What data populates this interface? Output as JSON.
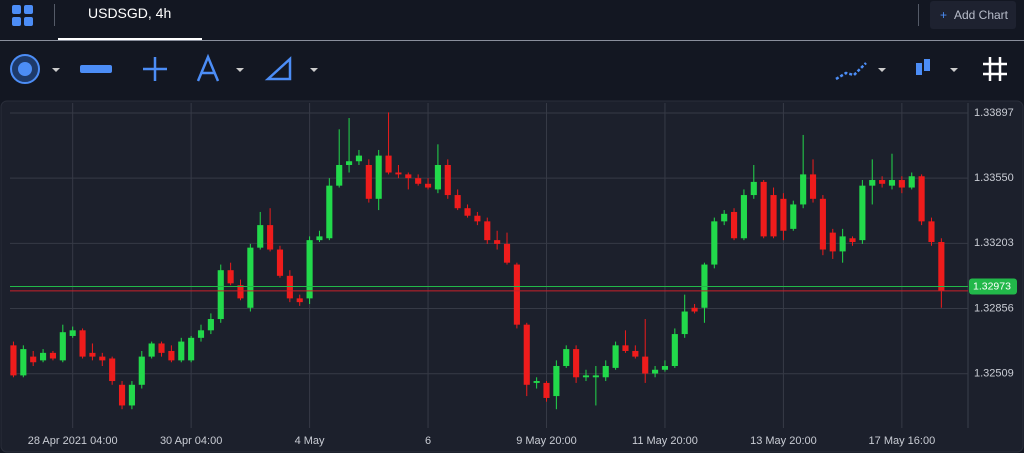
{
  "header": {
    "tab": "USDSGD, 4h",
    "add_chart": "Add Chart"
  },
  "chart_data": {
    "type": "candlestick",
    "up_color": "#22d94b",
    "down_color": "#ee1c1c",
    "grid": true,
    "open": [
      1.3266,
      1.325,
      1.326,
      1.3258,
      1.3262,
      1.3258,
      1.3271,
      1.3274,
      1.3262,
      1.326,
      1.3259,
      1.3245,
      1.3234,
      1.3245,
      1.326,
      1.3267,
      1.3263,
      1.3258,
      1.3258,
      1.327,
      1.3274,
      1.328,
      1.3306,
      1.3298,
      1.3286,
      1.3318,
      1.333,
      1.3317,
      1.3303,
      1.3291,
      1.3291,
      1.3322,
      1.3323,
      1.3351,
      1.3362,
      1.3364,
      1.3362,
      1.3344,
      1.3367,
      1.3358,
      1.3357,
      1.3355,
      1.3352,
      1.3349,
      1.3362,
      1.3346,
      1.3339,
      1.3335,
      1.3332,
      1.3322,
      1.332,
      1.3309,
      1.3277,
      1.3246,
      1.3246,
      1.3239,
      1.3255,
      1.3264,
      1.3249,
      1.3249,
      1.3249,
      1.3254,
      1.3266,
      1.3263,
      1.326,
      1.3251,
      1.3253,
      1.3255,
      1.3272,
      1.3286,
      1.3286,
      1.3309,
      1.3332,
      1.3337,
      1.3323,
      1.3346,
      1.3353,
      1.3346,
      1.3344,
      1.3328,
      1.3341,
      1.3357,
      1.3344,
      1.3326,
      1.3316,
      1.3323,
      1.3322,
      1.3351,
      1.3354,
      1.3351,
      1.3354,
      1.335,
      1.3356,
      1.3332,
      1.3321
    ],
    "high": [
      1.3268,
      1.3266,
      1.3263,
      1.3264,
      1.3263,
      1.3277,
      1.3276,
      1.3275,
      1.3267,
      1.3262,
      1.326,
      1.3247,
      1.3247,
      1.3263,
      1.3268,
      1.3268,
      1.3266,
      1.327,
      1.3271,
      1.3277,
      1.3283,
      1.3309,
      1.331,
      1.3301,
      1.332,
      1.3337,
      1.3339,
      1.3319,
      1.3306,
      1.3293,
      1.3324,
      1.3327,
      1.3355,
      1.3381,
      1.3387,
      1.337,
      1.3365,
      1.337,
      1.339,
      1.3362,
      1.3358,
      1.3357,
      1.3355,
      1.3373,
      1.3365,
      1.3349,
      1.3341,
      1.3337,
      1.3334,
      1.3327,
      1.3326,
      1.331,
      1.3278,
      1.3249,
      1.3247,
      1.3258,
      1.3266,
      1.3266,
      1.3253,
      1.3255,
      1.3258,
      1.3268,
      1.3274,
      1.3266,
      1.328,
      1.3255,
      1.3258,
      1.3275,
      1.3293,
      1.3288,
      1.331,
      1.3334,
      1.3338,
      1.3339,
      1.3349,
      1.3362,
      1.3354,
      1.335,
      1.3347,
      1.3343,
      1.3378,
      1.3365,
      1.3346,
      1.3328,
      1.3328,
      1.3324,
      1.3354,
      1.3365,
      1.3356,
      1.3368,
      1.3356,
      1.3358,
      1.3357,
      1.3334,
      1.3323
    ],
    "low": [
      1.3249,
      1.3249,
      1.3255,
      1.3257,
      1.3258,
      1.3257,
      1.327,
      1.3259,
      1.3258,
      1.3255,
      1.3245,
      1.3232,
      1.3232,
      1.3243,
      1.3259,
      1.326,
      1.3257,
      1.3257,
      1.3257,
      1.3268,
      1.3272,
      1.3278,
      1.3298,
      1.329,
      1.3284,
      1.3317,
      1.3316,
      1.3302,
      1.3289,
      1.3287,
      1.3288,
      1.3321,
      1.3322,
      1.335,
      1.3358,
      1.3362,
      1.3342,
      1.3338,
      1.3357,
      1.3355,
      1.3349,
      1.3351,
      1.3349,
      1.3347,
      1.3344,
      1.3338,
      1.3334,
      1.333,
      1.332,
      1.3317,
      1.3309,
      1.3275,
      1.3239,
      1.3243,
      1.3236,
      1.3232,
      1.3254,
      1.3246,
      1.3247,
      1.3234,
      1.3247,
      1.3253,
      1.3262,
      1.3259,
      1.3246,
      1.3249,
      1.3252,
      1.3254,
      1.327,
      1.3283,
      1.3278,
      1.3307,
      1.333,
      1.3322,
      1.3322,
      1.3344,
      1.3323,
      1.3323,
      1.3322,
      1.3327,
      1.3339,
      1.3342,
      1.3314,
      1.3312,
      1.331,
      1.3319,
      1.332,
      1.3341,
      1.335,
      1.3349,
      1.3347,
      1.3349,
      1.333,
      1.3319,
      1.3286
    ],
    "close": [
      1.325,
      1.3264,
      1.3257,
      1.3262,
      1.3259,
      1.3273,
      1.3274,
      1.326,
      1.326,
      1.3258,
      1.3247,
      1.3234,
      1.3245,
      1.326,
      1.3267,
      1.3262,
      1.3258,
      1.3268,
      1.327,
      1.3274,
      1.328,
      1.3306,
      1.3299,
      1.3291,
      1.3318,
      1.333,
      1.3317,
      1.3303,
      1.3291,
      1.3289,
      1.3322,
      1.3324,
      1.3351,
      1.3362,
      1.3364,
      1.3367,
      1.3344,
      1.3367,
      1.3358,
      1.3357,
      1.3355,
      1.3352,
      1.335,
      1.3362,
      1.3346,
      1.3339,
      1.3335,
      1.3332,
      1.3322,
      1.332,
      1.331,
      1.3277,
      1.3245,
      1.3247,
      1.3238,
      1.3255,
      1.3264,
      1.3249,
      1.325,
      1.325,
      1.3255,
      1.3266,
      1.3263,
      1.326,
      1.3251,
      1.3253,
      1.3255,
      1.3272,
      1.3284,
      1.3284,
      1.3309,
      1.3332,
      1.3336,
      1.3323,
      1.3346,
      1.3353,
      1.3324,
      1.3324,
      1.3327,
      1.3341,
      1.3357,
      1.3344,
      1.3317,
      1.3316,
      1.3324,
      1.3321,
      1.3351,
      1.3354,
      1.3352,
      1.3354,
      1.335,
      1.3356,
      1.3332,
      1.3321,
      1.3295
    ],
    "xlim": [
      -0.35,
      96.7
    ],
    "xticks": [
      {
        "value": 6,
        "label": "28 Apr 2021 04:00"
      },
      {
        "value": 18,
        "label": "30 Apr 04:00"
      },
      {
        "value": 30,
        "label": "4 May"
      },
      {
        "value": 42,
        "label": "6"
      },
      {
        "value": 54,
        "label": "9 May 20:00"
      },
      {
        "value": 66,
        "label": "11 May 20:00"
      },
      {
        "value": 78,
        "label": "13 May 20:00"
      },
      {
        "value": 90,
        "label": "17 May 16:00"
      }
    ],
    "ylim": [
      1.3222,
      1.3395
    ],
    "yticks": [
      1.33897,
      {
        "value": 1.3355,
        "label": "1.33550"
      },
      1.33203,
      1.32856,
      1.32509
    ],
    "price_lines": [
      {
        "value": 1.32973,
        "label": "1.32973",
        "color": "#22b84a"
      },
      {
        "value": 1.3295,
        "color": "#c8202a"
      }
    ]
  }
}
